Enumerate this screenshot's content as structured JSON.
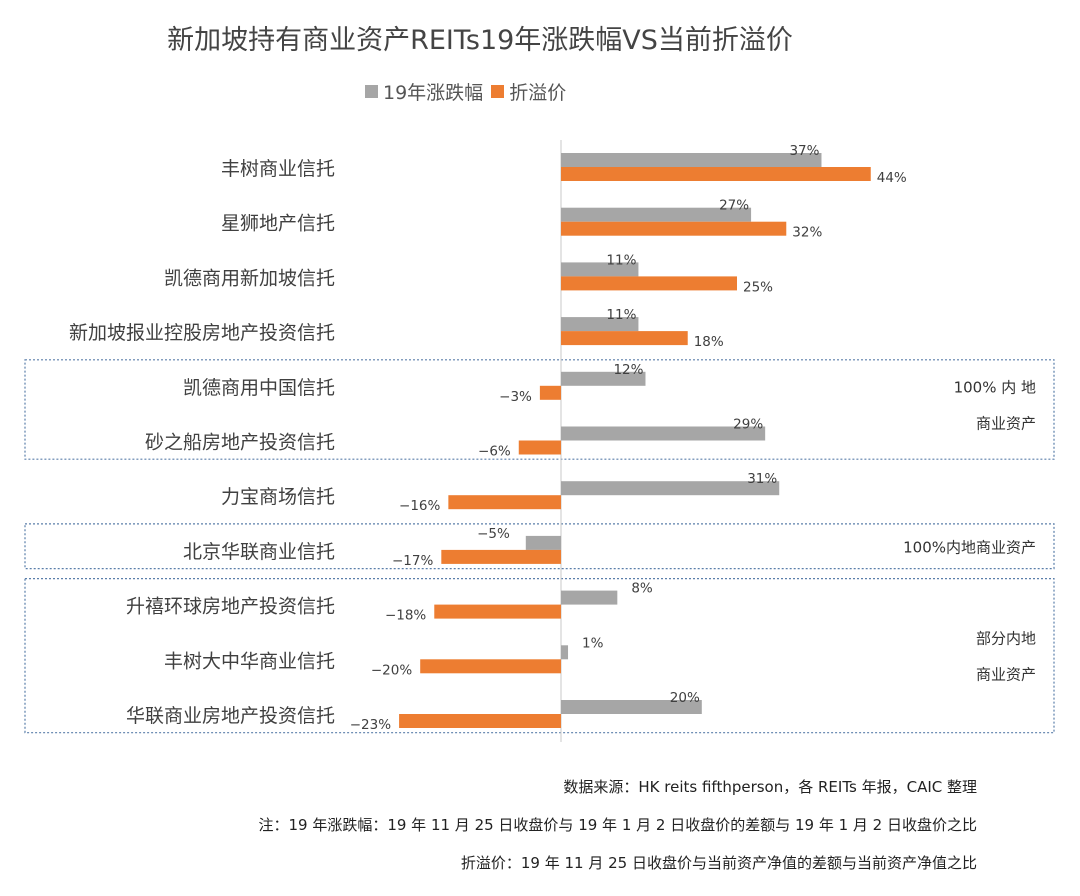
{
  "colors": {
    "series_gray": "#a6a6a6",
    "series_orange": "#ed7d31",
    "group_border": "#5b7faa",
    "axis": "#c8c8c8"
  },
  "chart_data": {
    "type": "bar",
    "orientation": "horizontal",
    "title": "新加坡持有商业资产REITs19年涨跌幅VS当前折溢价",
    "legend_position": "top",
    "categories": [
      "丰树商业信托",
      "星狮地产信托",
      "凯德商用新加坡信托",
      "新加坡报业控股房地产投资信托",
      "凯德商用中国信托",
      "砂之船房地产投资信托",
      "力宝商场信托",
      "北京华联商业信托",
      "升禧环球房地产投资信托",
      "丰树大中华商业信托",
      "华联商业房地产投资信托"
    ],
    "series": [
      {
        "name": "19年涨跌幅",
        "color": "#a6a6a6",
        "values": [
          37,
          27,
          11,
          11,
          12,
          29,
          31,
          -5,
          8,
          1,
          20
        ],
        "labels": [
          "37%",
          "27%",
          "11%",
          "11%",
          "12%",
          "29%",
          "31%",
          "−5%",
          "8%",
          "1%",
          "20%"
        ]
      },
      {
        "name": "折溢价",
        "color": "#ed7d31",
        "values": [
          44,
          32,
          25,
          18,
          -3,
          -6,
          -16,
          -17,
          -18,
          -20,
          -23
        ],
        "labels": [
          "44%",
          "32%",
          "25%",
          "18%",
          "−3%",
          "−6%",
          "−16%",
          "−17%",
          "−18%",
          "−20%",
          "−23%"
        ]
      }
    ],
    "groups": [
      {
        "name": "group-100-mainland",
        "rows": [
          4,
          5
        ],
        "label_lines": [
          "100% 内 地",
          "商业资产"
        ]
      },
      {
        "name": "group-100-mainland-2",
        "rows": [
          7,
          7
        ],
        "label_lines": [
          "100%内地商业资产"
        ]
      },
      {
        "name": "group-partial-mainland",
        "rows": [
          8,
          10
        ],
        "label_lines": [
          "部分内地",
          "商业资产"
        ]
      }
    ],
    "xlim": [
      -30,
      60
    ]
  },
  "footer": {
    "source": "数据来源：HK reits fifthperson，各 REITs 年报，CAIC 整理",
    "note1": "注：19 年涨跌幅：19 年 11 月 25 日收盘价与 19 年 1 月 2 日收盘价的差额与 19 年 1 月 2 日收盘价之比",
    "note2": "折溢价：19 年 11 月 25 日收盘价与当前资产净值的差额与当前资产净值之比"
  }
}
